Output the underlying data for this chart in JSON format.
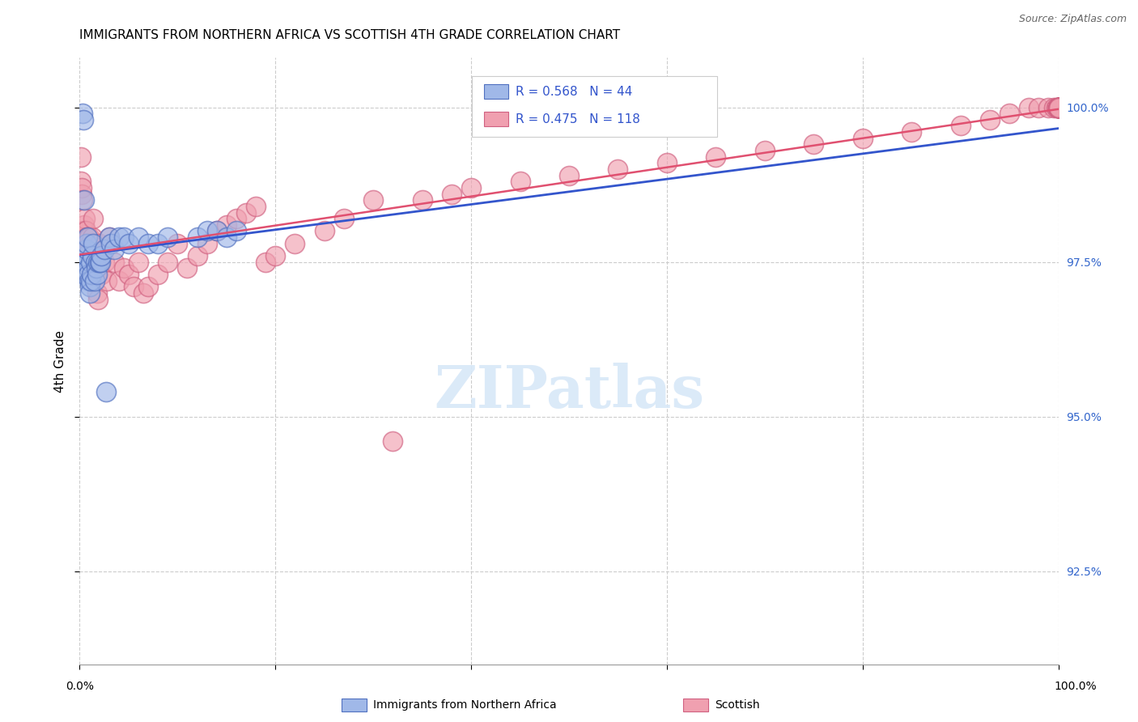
{
  "title": "IMMIGRANTS FROM NORTHERN AFRICA VS SCOTTISH 4TH GRADE CORRELATION CHART",
  "source": "Source: ZipAtlas.com",
  "ylabel": "4th Grade",
  "ylabel_right_vals": [
    100.0,
    97.5,
    95.0,
    92.5
  ],
  "xmin": 0.0,
  "xmax": 100.0,
  "ymin": 91.0,
  "ymax": 100.8,
  "blue_R": 0.568,
  "blue_N": 44,
  "pink_R": 0.475,
  "pink_N": 118,
  "blue_label": "Immigrants from Northern Africa",
  "pink_label": "Scottish",
  "blue_face": "#a0b8e8",
  "blue_edge": "#5070c0",
  "pink_face": "#f0a0b0",
  "pink_edge": "#d06080",
  "trend_blue": "#3355cc",
  "trend_pink": "#e05070",
  "grid_color": "#cccccc",
  "watermark_color": "#d8e8f8",
  "blue_scatter_x": [
    0.3,
    0.4,
    0.5,
    0.55,
    0.6,
    0.65,
    0.7,
    0.75,
    0.8,
    0.85,
    0.9,
    0.95,
    1.0,
    1.05,
    1.1,
    1.15,
    1.2,
    1.3,
    1.4,
    1.5,
    1.6,
    1.7,
    1.8,
    1.9,
    2.0,
    2.1,
    2.2,
    2.5,
    2.7,
    3.0,
    3.2,
    3.5,
    4.0,
    4.5,
    5.0,
    6.0,
    7.0,
    8.0,
    9.0,
    12.0,
    13.0,
    14.0,
    15.0,
    16.0
  ],
  "blue_scatter_y": [
    99.9,
    99.8,
    98.5,
    97.3,
    97.5,
    97.6,
    97.7,
    97.8,
    97.9,
    97.4,
    97.3,
    97.2,
    97.1,
    97.0,
    97.2,
    97.5,
    97.3,
    97.6,
    97.8,
    97.2,
    97.5,
    97.4,
    97.3,
    97.5,
    97.5,
    97.5,
    97.6,
    97.7,
    95.4,
    97.9,
    97.8,
    97.7,
    97.9,
    97.9,
    97.8,
    97.9,
    97.8,
    97.8,
    97.9,
    97.9,
    98.0,
    98.0,
    97.9,
    98.0
  ],
  "pink_scatter_x": [
    0.1,
    0.15,
    0.2,
    0.25,
    0.3,
    0.35,
    0.4,
    0.45,
    0.5,
    0.55,
    0.6,
    0.65,
    0.7,
    0.75,
    0.8,
    0.85,
    0.9,
    0.95,
    1.0,
    1.1,
    1.2,
    1.3,
    1.4,
    1.5,
    1.6,
    1.7,
    1.8,
    1.9,
    2.0,
    2.2,
    2.5,
    2.8,
    3.0,
    3.5,
    4.0,
    4.5,
    5.0,
    5.5,
    6.0,
    6.5,
    7.0,
    8.0,
    9.0,
    10.0,
    11.0,
    12.0,
    13.0,
    14.0,
    15.0,
    16.0,
    17.0,
    18.0,
    19.0,
    20.0,
    22.0,
    25.0,
    27.0,
    30.0,
    32.0,
    35.0,
    38.0,
    40.0,
    45.0,
    50.0,
    55.0,
    60.0,
    65.0,
    70.0,
    75.0,
    80.0,
    85.0,
    90.0,
    93.0,
    95.0,
    97.0,
    98.0,
    99.0,
    99.5,
    99.8,
    99.9,
    100.0,
    100.0,
    100.0,
    100.0,
    100.0,
    100.0,
    100.0,
    100.0,
    100.0,
    100.0,
    100.0,
    100.0,
    100.0,
    100.0,
    100.0,
    100.0,
    100.0,
    100.0,
    100.0,
    100.0,
    100.0,
    100.0,
    100.0,
    100.0,
    100.0,
    100.0,
    100.0,
    100.0,
    100.0,
    100.0,
    100.0,
    100.0,
    100.0,
    100.0
  ],
  "pink_scatter_y": [
    99.2,
    98.8,
    98.6,
    98.7,
    98.5,
    98.0,
    97.9,
    98.1,
    98.0,
    98.2,
    98.0,
    97.8,
    97.8,
    97.9,
    97.9,
    97.8,
    97.7,
    97.9,
    97.8,
    97.7,
    97.8,
    97.9,
    98.2,
    97.5,
    97.3,
    97.4,
    97.0,
    96.9,
    97.8,
    97.3,
    97.5,
    97.2,
    97.9,
    97.5,
    97.2,
    97.4,
    97.3,
    97.1,
    97.5,
    97.0,
    97.1,
    97.3,
    97.5,
    97.8,
    97.4,
    97.6,
    97.8,
    98.0,
    98.1,
    98.2,
    98.3,
    98.4,
    97.5,
    97.6,
    97.8,
    98.0,
    98.2,
    98.5,
    94.6,
    98.5,
    98.6,
    98.7,
    98.8,
    98.9,
    99.0,
    99.1,
    99.2,
    99.3,
    99.4,
    99.5,
    99.6,
    99.7,
    99.8,
    99.9,
    100.0,
    100.0,
    100.0,
    100.0,
    100.0,
    100.0,
    100.0,
    100.0,
    100.0,
    100.0,
    100.0,
    100.0,
    100.0,
    100.0,
    100.0,
    100.0,
    100.0,
    100.0,
    100.0,
    100.0,
    100.0,
    100.0,
    100.0,
    100.0,
    100.0,
    100.0,
    100.0,
    100.0,
    100.0,
    100.0,
    100.0,
    100.0,
    100.0,
    100.0,
    100.0,
    100.0,
    100.0,
    100.0,
    100.0,
    100.0
  ]
}
